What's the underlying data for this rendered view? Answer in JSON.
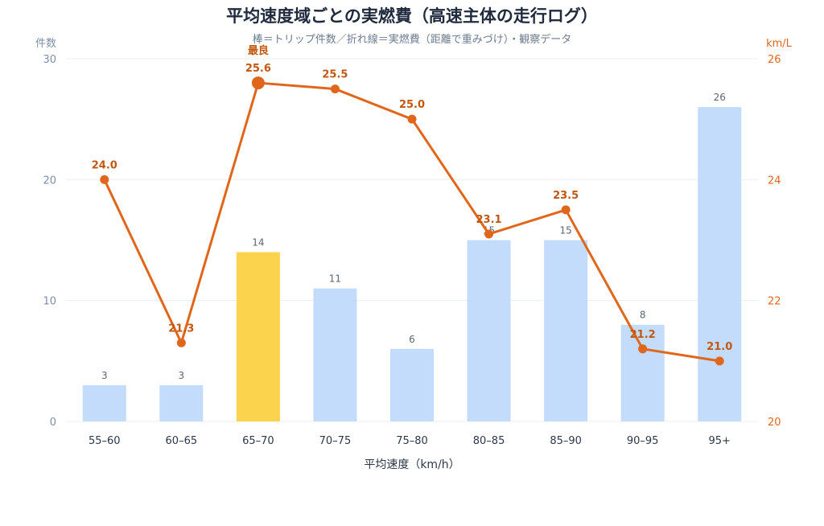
{
  "chart_data": {
    "type": "bar+line",
    "title": "平均速度域ごとの実燃費（高速主体の走行ログ）",
    "subtitle": "棒＝トリップ件数／折れ線＝実燃費（距離で重みづけ）・観察データ",
    "xlabel": "平均速度（km/h）",
    "y_left_label": "件数",
    "y_right_label": "km/L",
    "y_left_range": [
      0,
      30
    ],
    "y_left_ticks": [
      "0",
      "10",
      "20",
      "30"
    ],
    "y_right_range": [
      20,
      26
    ],
    "y_right_ticks": [
      "20",
      "22",
      "24",
      "26"
    ],
    "categories": [
      "55–60",
      "60–65",
      "65–70",
      "70–75",
      "75–80",
      "80–85",
      "85–90",
      "90–95",
      "95+"
    ],
    "bar_values": [
      3,
      3,
      14,
      11,
      6,
      15,
      15,
      8,
      26
    ],
    "bar_labels": [
      "3",
      "3",
      "14",
      "11",
      "6",
      "15",
      "15",
      "8",
      "26"
    ],
    "line_values": [
      24.0,
      21.3,
      25.6,
      25.5,
      25.0,
      23.1,
      23.5,
      21.2,
      21.0
    ],
    "line_labels": [
      "24.0",
      "21.3",
      "25.6",
      "25.5",
      "25.0",
      "23.1",
      "23.5",
      "21.2",
      "21.0"
    ],
    "highlight_index": 2,
    "highlight_text": "最良",
    "colors": {
      "bar": "#c3dcfb",
      "bar_highlight": "#fcd34d",
      "line": "#e0661b",
      "line_label": "#c2570f"
    },
    "grid": true
  }
}
